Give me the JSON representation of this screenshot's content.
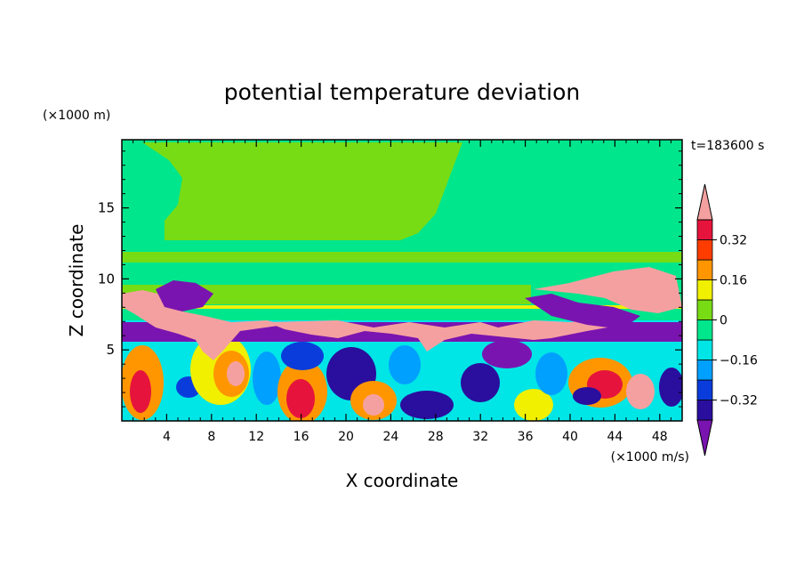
{
  "chart_data": {
    "type": "heatmap",
    "title": "potential temperature deviation",
    "xlabel": "X coordinate",
    "ylabel": "Z coordinate",
    "x_unit": "(×1000 m/s)",
    "y_unit": "(×1000 m)",
    "time_label": "t=183600 s",
    "xlim": [
      0,
      50
    ],
    "ylim": [
      0,
      19.8
    ],
    "x_ticks": [
      "4",
      "8",
      "12",
      "16",
      "20",
      "24",
      "28",
      "32",
      "36",
      "40",
      "44",
      "48"
    ],
    "y_ticks": [
      "5",
      "10",
      "15"
    ],
    "colorbar": {
      "levels": [
        -0.4,
        -0.32,
        -0.24,
        -0.16,
        -0.08,
        0,
        0.08,
        0.16,
        0.24,
        0.32,
        0.4
      ],
      "tick_labels": [
        "0.32",
        "0.16",
        "0",
        "−0.16",
        "−0.32"
      ],
      "colors": [
        "#7a14b0",
        "#2a0e9e",
        "#0a3cdc",
        "#00a0ff",
        "#00e6e6",
        "#00e68c",
        "#78dc14",
        "#f0f000",
        "#ff9600",
        "#ff3c00",
        "#e6143c",
        "#f5a0a0"
      ],
      "extend": "both"
    },
    "grid": false,
    "legend": "right"
  }
}
